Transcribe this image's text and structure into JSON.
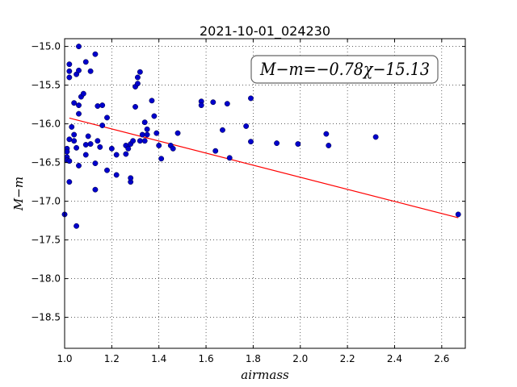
{
  "chart_data": {
    "type": "scatter",
    "title": "2021-10-01_024230",
    "xlabel": "airmass",
    "ylabel": "M−m",
    "xlim": [
      1.0,
      2.7
    ],
    "ylim": [
      -18.9,
      -14.9
    ],
    "y_inverted": true,
    "x_ticks": [
      1.0,
      1.2,
      1.4,
      1.6,
      1.8,
      2.0,
      2.2,
      2.4,
      2.6
    ],
    "x_tick_labels": [
      "1.0",
      "1.2",
      "1.4",
      "1.6",
      "1.8",
      "2.0",
      "2.2",
      "2.4",
      "2.6"
    ],
    "y_ticks": [
      -15.0,
      -15.5,
      -16.0,
      -16.5,
      -17.0,
      -17.5,
      -18.0,
      -18.5
    ],
    "y_tick_labels": [
      "−15.0",
      "−15.5",
      "−16.0",
      "−16.5",
      "−17.0",
      "−17.5",
      "−18.0",
      "−18.5"
    ],
    "grid": true,
    "annotation": "M−m=−0.78χ−15.13",
    "fit_line": {
      "x": [
        1.02,
        2.67
      ],
      "y": [
        -15.925,
        -17.213
      ],
      "color": "#ff0000"
    },
    "point_color": "#0000cc",
    "points": [
      [
        1.0,
        -17.17
      ],
      [
        1.01,
        -16.32
      ],
      [
        1.01,
        -16.36
      ],
      [
        1.01,
        -16.43
      ],
      [
        1.01,
        -16.47
      ],
      [
        1.02,
        -15.23
      ],
      [
        1.02,
        -15.32
      ],
      [
        1.02,
        -15.4
      ],
      [
        1.02,
        -16.2
      ],
      [
        1.02,
        -16.48
      ],
      [
        1.02,
        -16.75
      ],
      [
        1.03,
        -16.04
      ],
      [
        1.04,
        -15.73
      ],
      [
        1.04,
        -16.22
      ],
      [
        1.04,
        -16.14
      ],
      [
        1.05,
        -15.36
      ],
      [
        1.05,
        -16.31
      ],
      [
        1.05,
        -17.32
      ],
      [
        1.06,
        -15.0
      ],
      [
        1.06,
        -15.31
      ],
      [
        1.06,
        -15.76
      ],
      [
        1.06,
        -15.87
      ],
      [
        1.06,
        -16.54
      ],
      [
        1.07,
        -15.65
      ],
      [
        1.08,
        -15.61
      ],
      [
        1.09,
        -15.2
      ],
      [
        1.09,
        -16.27
      ],
      [
        1.09,
        -16.4
      ],
      [
        1.1,
        -16.16
      ],
      [
        1.11,
        -15.32
      ],
      [
        1.11,
        -16.26
      ],
      [
        1.13,
        -15.1
      ],
      [
        1.13,
        -16.51
      ],
      [
        1.13,
        -16.85
      ],
      [
        1.14,
        -15.77
      ],
      [
        1.14,
        -16.22
      ],
      [
        1.15,
        -16.3
      ],
      [
        1.16,
        -15.76
      ],
      [
        1.16,
        -16.02
      ],
      [
        1.18,
        -15.92
      ],
      [
        1.18,
        -16.6
      ],
      [
        1.2,
        -16.32
      ],
      [
        1.22,
        -16.4
      ],
      [
        1.22,
        -16.66
      ],
      [
        1.26,
        -16.28
      ],
      [
        1.26,
        -16.39
      ],
      [
        1.27,
        -16.32
      ],
      [
        1.28,
        -16.75
      ],
      [
        1.28,
        -16.7
      ],
      [
        1.28,
        -16.26
      ],
      [
        1.29,
        -16.22
      ],
      [
        1.3,
        -15.78
      ],
      [
        1.3,
        -15.52
      ],
      [
        1.31,
        -15.48
      ],
      [
        1.31,
        -15.4
      ],
      [
        1.32,
        -15.33
      ],
      [
        1.32,
        -16.22
      ],
      [
        1.33,
        -16.14
      ],
      [
        1.34,
        -16.22
      ],
      [
        1.34,
        -15.98
      ],
      [
        1.35,
        -16.07
      ],
      [
        1.35,
        -16.14
      ],
      [
        1.37,
        -15.7
      ],
      [
        1.38,
        -15.9
      ],
      [
        1.39,
        -16.12
      ],
      [
        1.4,
        -16.28
      ],
      [
        1.41,
        -16.45
      ],
      [
        1.45,
        -16.28
      ],
      [
        1.46,
        -16.32
      ],
      [
        1.48,
        -16.12
      ],
      [
        1.58,
        -15.71
      ],
      [
        1.58,
        -15.76
      ],
      [
        1.63,
        -15.72
      ],
      [
        1.64,
        -16.35
      ],
      [
        1.67,
        -16.08
      ],
      [
        1.69,
        -15.74
      ],
      [
        1.7,
        -16.44
      ],
      [
        1.77,
        -16.03
      ],
      [
        1.79,
        -15.67
      ],
      [
        1.79,
        -16.23
      ],
      [
        1.9,
        -16.25
      ],
      [
        1.99,
        -16.26
      ],
      [
        2.11,
        -16.13
      ],
      [
        2.12,
        -16.28
      ],
      [
        2.32,
        -16.17
      ],
      [
        2.67,
        -17.17
      ]
    ]
  }
}
